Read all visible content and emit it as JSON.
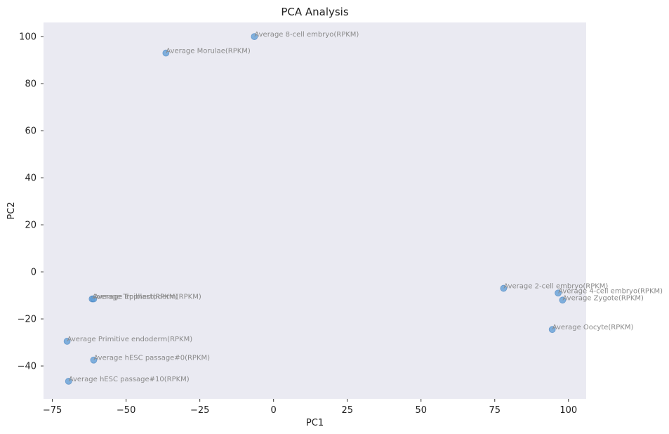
{
  "chart_data": {
    "type": "scatter",
    "title": "PCA Analysis",
    "xlabel": "PC1",
    "ylabel": "PC2",
    "xlim": [
      -78,
      106
    ],
    "ylim": [
      -54,
      106
    ],
    "xticks": [
      -75,
      -50,
      -25,
      0,
      25,
      50,
      75,
      100
    ],
    "xtick_labels": [
      "−75",
      "−50",
      "−25",
      "0",
      "25",
      "50",
      "75",
      "100"
    ],
    "yticks": [
      -40,
      -20,
      0,
      20,
      40,
      60,
      80,
      100
    ],
    "ytick_labels": [
      "−40",
      "−20",
      "0",
      "20",
      "40",
      "60",
      "80",
      "100"
    ],
    "grid": false,
    "legend": false,
    "point_color": "#5b9bd5",
    "label_color": "#8a8a8a",
    "points": [
      {
        "label": "Average 8-cell embryo(RPKM)",
        "x": -6.5,
        "y": 100
      },
      {
        "label": "Average Morulae(RPKM)",
        "x": -36.5,
        "y": 93
      },
      {
        "label": "Average 2-cell embryo(RPKM)",
        "x": 78,
        "y": -7
      },
      {
        "label": "Average 4-cell embryo(RPKM)",
        "x": 96.5,
        "y": -9
      },
      {
        "label": "Average Zygote(RPKM)",
        "x": 98,
        "y": -12
      },
      {
        "label": "Average Oocyte(RPKM)",
        "x": 94.5,
        "y": -24.5
      },
      {
        "label": "Average Trophectoderm(RPKM)",
        "x": -61.5,
        "y": -11.5
      },
      {
        "label": "Average Epiblast(RPKM)",
        "x": -61,
        "y": -11.5
      },
      {
        "label": "Average Primitive endoderm(RPKM)",
        "x": -70,
        "y": -29.5
      },
      {
        "label": "Average hESC passage#0(RPKM)",
        "x": -61,
        "y": -37.5
      },
      {
        "label": "Average hESC passage#10(RPKM)",
        "x": -69.5,
        "y": -46.5
      }
    ]
  }
}
